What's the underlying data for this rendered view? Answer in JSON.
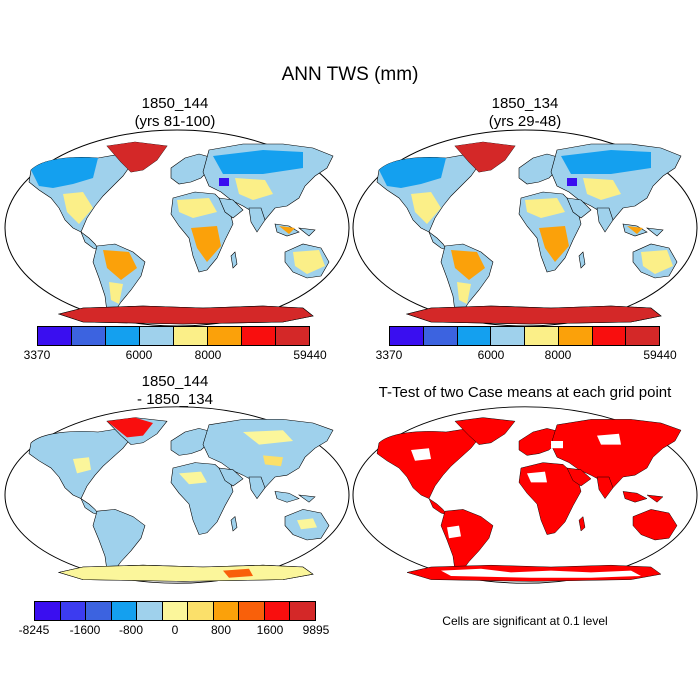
{
  "main_title": "ANN TWS (mm)",
  "panels": {
    "p1": {
      "line1": "1850_144",
      "line2": "(yrs 81-100)"
    },
    "p2": {
      "line1": "1850_134",
      "line2": "(yrs 29-48)"
    },
    "p3": {
      "line1": "1850_144",
      "line2": "- 1850_134"
    },
    "p4": {
      "line1": "T-Test of two Case means at each grid point"
    }
  },
  "colorbar_abs": {
    "colors": [
      "#3a0ef0",
      "#3c63e0",
      "#14a0ef",
      "#9fd1ec",
      "#fbef88",
      "#fba10a",
      "#f90e0e",
      "#d42828"
    ],
    "labels": {
      "min": "3370",
      "a": "6000",
      "b": "8000",
      "max": "59440"
    }
  },
  "colorbar_diff": {
    "colors": [
      "#3a0ef0",
      "#3c3cf0",
      "#3c63e0",
      "#14a0ef",
      "#9fd1ec",
      "#fbf69b",
      "#fbe06a",
      "#fba10a",
      "#f9600a",
      "#f90e0e",
      "#d42828"
    ],
    "labels": {
      "min": "-8245",
      "a": "-1600",
      "b": "-800",
      "c": "0",
      "d": "800",
      "e": "1600",
      "max": "9895"
    }
  },
  "significance_note": "Cells are significant at 0.1 level",
  "ttest_color": "#ff0000"
}
